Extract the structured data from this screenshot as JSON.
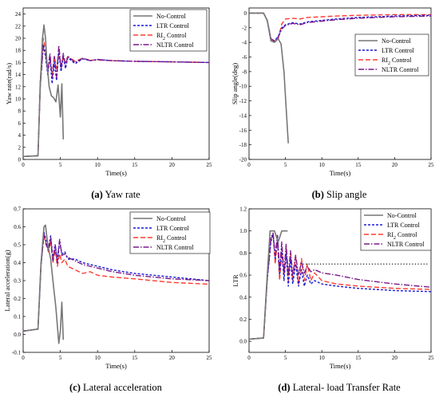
{
  "colors": {
    "No-Control": "#777777",
    "LTR Control": "#1a1ad6",
    "RI2 Control": "#ff3b2f",
    "NLTR Control": "#7a1a8a"
  },
  "legend_entries": [
    {
      "label": "No-Control",
      "sub": "",
      "tail": ""
    },
    {
      "label": "LTR Control",
      "sub": "",
      "tail": ""
    },
    {
      "label": "RI",
      "sub": "2",
      "tail": " Control"
    },
    {
      "label": "NLTR Control",
      "sub": "",
      "tail": ""
    }
  ],
  "chart_data": [
    {
      "type": "line",
      "caption_letter": "(a)",
      "caption_text": " Yaw rate",
      "xlabel": "Time(s)",
      "ylabel": "Yaw rate(rad/s)",
      "xlim": [
        0,
        25
      ],
      "ylim": [
        0,
        25
      ],
      "xticks": [
        "0",
        "5",
        "10",
        "15",
        "20",
        "25"
      ],
      "yticks": [
        "0",
        "2",
        "4",
        "6",
        "8",
        "10",
        "12",
        "14",
        "16",
        "18",
        "20",
        "22",
        "24"
      ],
      "threshold": null,
      "series": [
        {
          "name": "No-Control",
          "x": [
            0,
            0.3,
            2.0,
            2.3,
            2.6,
            2.8,
            3.0,
            3.2,
            3.5,
            3.8,
            4.1,
            4.4,
            4.7,
            5.0,
            5.2,
            5.4
          ],
          "y": [
            0.5,
            0.5,
            0.6,
            12,
            20,
            22.2,
            20,
            16,
            12,
            10.5,
            10.2,
            9.5,
            12.3,
            7,
            12.5,
            3.3
          ]
        },
        {
          "name": "LTR Control",
          "x": [
            0,
            0.3,
            2.0,
            2.3,
            2.7,
            3.0,
            3.3,
            3.6,
            3.9,
            4.2,
            4.5,
            4.8,
            5.1,
            5.4,
            5.7,
            6,
            7,
            8,
            9,
            10,
            12,
            15,
            20,
            25
          ],
          "y": [
            0.5,
            0.5,
            0.6,
            12,
            19,
            17,
            14,
            17,
            12.5,
            16,
            13,
            18,
            14.5,
            17,
            15,
            16.8,
            15.8,
            16.6,
            16.3,
            16.5,
            16.3,
            16.2,
            16.1,
            16
          ]
        },
        {
          "name": "RI2 Control",
          "x": [
            0,
            0.3,
            2.0,
            2.3,
            2.7,
            3.0,
            3.3,
            3.6,
            3.9,
            4.2,
            4.5,
            4.8,
            5.1,
            5.4,
            5.7,
            6,
            7,
            8,
            9,
            10,
            12,
            15,
            20,
            25
          ],
          "y": [
            0.5,
            0.5,
            0.6,
            13,
            20,
            18,
            15,
            16.5,
            14,
            17,
            15,
            17.5,
            15.5,
            17,
            16,
            17,
            16.2,
            16.7,
            16.4,
            16.4,
            16.3,
            16.2,
            16.1,
            16
          ]
        },
        {
          "name": "NLTR Control",
          "x": [
            0,
            0.3,
            2.0,
            2.3,
            2.7,
            3.0,
            3.3,
            3.6,
            3.9,
            4.2,
            4.5,
            4.8,
            5.1,
            5.4,
            5.7,
            6,
            7,
            8,
            9,
            10,
            12,
            15,
            20,
            25
          ],
          "y": [
            0.5,
            0.5,
            0.6,
            12,
            18.5,
            17.5,
            14.5,
            17.5,
            13.5,
            17,
            13.5,
            18.8,
            15,
            17.5,
            15.5,
            17,
            16,
            16.7,
            16.3,
            16.5,
            16.3,
            16.2,
            16.1,
            16
          ]
        }
      ]
    },
    {
      "type": "line",
      "caption_letter": "(b)",
      "caption_text": " Slip angle",
      "xlabel": "Time(s)",
      "ylabel": "Slip angle(deg)",
      "xlim": [
        0,
        25
      ],
      "ylim": [
        -20,
        0.7
      ],
      "xticks": [
        "0",
        "5",
        "10",
        "15",
        "20",
        "25"
      ],
      "yticks": [
        "-20",
        "-18",
        "-16",
        "-14",
        "-12",
        "-10",
        "-8",
        "-6",
        "-4",
        "-2",
        "0"
      ],
      "threshold": null,
      "series": [
        {
          "name": "No-Control",
          "x": [
            0,
            2.0,
            2.5,
            3.0,
            3.5,
            4.0,
            4.4,
            4.8,
            5.1,
            5.4
          ],
          "y": [
            0,
            0,
            -1,
            -3.8,
            -4.0,
            -3.5,
            -4.2,
            -8,
            -13,
            -17.8
          ]
        },
        {
          "name": "LTR Control",
          "x": [
            0,
            2.0,
            2.5,
            3.0,
            3.5,
            4.0,
            4.5,
            5.0,
            6,
            7,
            8,
            10,
            12,
            15,
            20,
            25
          ],
          "y": [
            0,
            0,
            -1,
            -3.5,
            -3.8,
            -3.2,
            -2,
            -1.6,
            -1.3,
            -1.5,
            -1.2,
            -1.0,
            -0.8,
            -0.6,
            -0.4,
            -0.3
          ]
        },
        {
          "name": "RI2 Control",
          "x": [
            0,
            2.0,
            2.5,
            3.0,
            3.5,
            4.0,
            4.5,
            5.0,
            6,
            7,
            8,
            10,
            12,
            15,
            20,
            25
          ],
          "y": [
            0,
            0,
            -1,
            -3.6,
            -3.9,
            -3.5,
            -1.5,
            -0.8,
            -0.7,
            -0.8,
            -0.6,
            -0.5,
            -0.4,
            -0.3,
            -0.2,
            -0.2
          ]
        },
        {
          "name": "NLTR Control",
          "x": [
            0,
            2.0,
            2.5,
            3.0,
            3.5,
            4.0,
            4.5,
            5.0,
            6,
            7,
            8,
            10,
            12,
            15,
            20,
            25
          ],
          "y": [
            0,
            0,
            -1,
            -3.5,
            -3.8,
            -3.3,
            -2.2,
            -1.7,
            -1.4,
            -1.6,
            -1.3,
            -1.1,
            -0.9,
            -0.7,
            -0.5,
            -0.4
          ]
        }
      ]
    },
    {
      "type": "line",
      "caption_letter": "(c)",
      "caption_text": " Lateral acceleration",
      "xlabel": "Time(s)",
      "ylabel": "Lateral acceleration(g)",
      "xlim": [
        0,
        25
      ],
      "ylim": [
        -0.1,
        0.7
      ],
      "xticks": [
        "0",
        "5",
        "10",
        "15",
        "20",
        "25"
      ],
      "yticks": [
        "-0.1",
        "0.0",
        "0.1",
        "0.2",
        "0.3",
        "0.4",
        "0.5",
        "0.6",
        "0.7"
      ],
      "threshold": null,
      "series": [
        {
          "name": "No-Control",
          "x": [
            0,
            0.3,
            2.0,
            2.4,
            2.8,
            3.0,
            3.3,
            3.7,
            4.0,
            4.4,
            4.8,
            5.0,
            5.2,
            5.4
          ],
          "y": [
            0.02,
            0.02,
            0.03,
            0.4,
            0.6,
            0.61,
            0.5,
            0.42,
            0.3,
            0.15,
            -0.05,
            0.02,
            0.18,
            -0.03
          ]
        },
        {
          "name": "LTR Control",
          "x": [
            0,
            0.3,
            2.0,
            2.4,
            2.8,
            3.1,
            3.4,
            3.7,
            4.0,
            4.3,
            4.6,
            4.9,
            5.2,
            5.6,
            6,
            7,
            8,
            9,
            10,
            12,
            15,
            20,
            25
          ],
          "y": [
            0.02,
            0.02,
            0.03,
            0.38,
            0.57,
            0.52,
            0.48,
            0.55,
            0.42,
            0.5,
            0.4,
            0.52,
            0.45,
            0.46,
            0.42,
            0.42,
            0.4,
            0.39,
            0.38,
            0.36,
            0.34,
            0.32,
            0.3
          ]
        },
        {
          "name": "RI2 Control",
          "x": [
            0,
            0.3,
            2.0,
            2.4,
            2.8,
            3.1,
            3.4,
            3.7,
            4.0,
            4.3,
            4.6,
            4.9,
            5.2,
            5.6,
            6,
            7,
            8,
            9,
            10,
            12,
            15,
            20,
            25
          ],
          "y": [
            0.02,
            0.02,
            0.03,
            0.4,
            0.55,
            0.5,
            0.46,
            0.52,
            0.4,
            0.47,
            0.38,
            0.45,
            0.4,
            0.42,
            0.38,
            0.36,
            0.34,
            0.35,
            0.33,
            0.32,
            0.31,
            0.29,
            0.28
          ]
        },
        {
          "name": "NLTR Control",
          "x": [
            0,
            0.3,
            2.0,
            2.4,
            2.8,
            3.1,
            3.4,
            3.7,
            4.0,
            4.3,
            4.6,
            4.9,
            5.2,
            5.6,
            6,
            7,
            8,
            9,
            10,
            12,
            15,
            20,
            25
          ],
          "y": [
            0.02,
            0.02,
            0.03,
            0.39,
            0.56,
            0.5,
            0.47,
            0.54,
            0.41,
            0.5,
            0.42,
            0.53,
            0.44,
            0.45,
            0.43,
            0.41,
            0.39,
            0.38,
            0.37,
            0.35,
            0.33,
            0.31,
            0.3
          ]
        }
      ]
    },
    {
      "type": "line",
      "caption_letter": "(d)",
      "caption_text": " Lateral- load Transfer Rate",
      "xlabel": "Time(s)",
      "ylabel": "LTR",
      "xlim": [
        0,
        25
      ],
      "ylim": [
        -0.1,
        1.2
      ],
      "xticks": [
        "0",
        "5",
        "10",
        "15",
        "20",
        "25"
      ],
      "yticks": [
        "0.0",
        "0.2",
        "0.4",
        "0.6",
        "0.8",
        "1.0",
        "1.2"
      ],
      "threshold": 0.7,
      "series": [
        {
          "name": "No-Control",
          "x": [
            0,
            2.0,
            2.5,
            2.9,
            3.1,
            3.5,
            4.0,
            4.5,
            5.0,
            5.3
          ],
          "y": [
            0.02,
            0.03,
            0.6,
            1.0,
            1.0,
            1.0,
            0.9,
            1.0,
            1.0,
            1.0
          ]
        },
        {
          "name": "LTR Control",
          "x": [
            0,
            2.0,
            2.5,
            3.0,
            3.3,
            3.6,
            3.9,
            4.2,
            4.5,
            4.8,
            5.1,
            5.4,
            5.7,
            6.0,
            6.4,
            6.8,
            7.2,
            7.6,
            8.0,
            8.5,
            9,
            10,
            12,
            15,
            20,
            25
          ],
          "y": [
            0.02,
            0.03,
            0.55,
            0.9,
            0.98,
            0.75,
            0.95,
            0.6,
            0.85,
            0.55,
            0.8,
            0.5,
            0.75,
            0.52,
            0.7,
            0.5,
            0.65,
            0.5,
            0.6,
            0.52,
            0.55,
            0.52,
            0.5,
            0.48,
            0.46,
            0.45
          ]
        },
        {
          "name": "RI2 Control",
          "x": [
            0,
            2.0,
            2.5,
            3.0,
            3.3,
            3.6,
            3.9,
            4.2,
            4.5,
            4.8,
            5.1,
            5.4,
            5.7,
            6.0,
            6.4,
            6.8,
            7.2,
            7.6,
            8.0,
            8.5,
            9,
            10,
            12,
            15,
            20,
            25
          ],
          "y": [
            0.02,
            0.03,
            0.58,
            0.92,
            0.97,
            0.7,
            0.92,
            0.55,
            0.8,
            0.6,
            0.85,
            0.55,
            0.8,
            0.55,
            0.78,
            0.52,
            0.75,
            0.55,
            0.7,
            0.55,
            0.62,
            0.55,
            0.52,
            0.5,
            0.48,
            0.47
          ]
        },
        {
          "name": "NLTR Control",
          "x": [
            0,
            2.0,
            2.5,
            3.0,
            3.3,
            3.6,
            3.9,
            4.2,
            4.5,
            4.8,
            5.1,
            5.4,
            5.7,
            6.0,
            6.4,
            6.8,
            7.2,
            7.6,
            8.0,
            8.5,
            9,
            10,
            12,
            15,
            20,
            25
          ],
          "y": [
            0.02,
            0.03,
            0.56,
            0.94,
            0.98,
            0.78,
            0.96,
            0.65,
            0.9,
            0.62,
            0.88,
            0.6,
            0.82,
            0.6,
            0.78,
            0.6,
            0.72,
            0.62,
            0.68,
            0.63,
            0.65,
            0.62,
            0.6,
            0.56,
            0.52,
            0.49
          ]
        }
      ]
    }
  ]
}
